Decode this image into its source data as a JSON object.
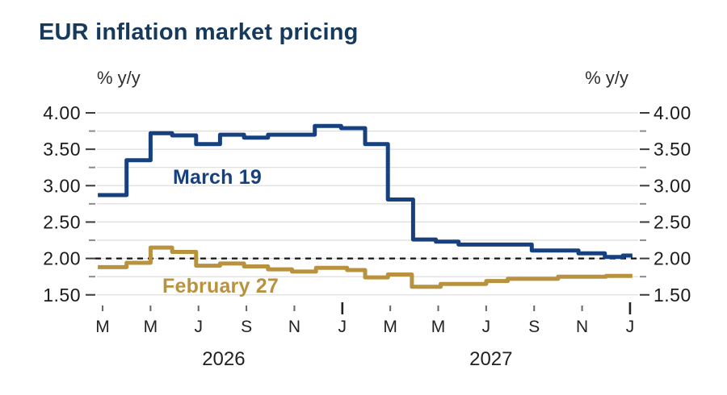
{
  "title": "EUR inflation market pricing",
  "axis_units": {
    "left": "% y/y",
    "right": "% y/y"
  },
  "chart_data": {
    "type": "line",
    "step": true,
    "title": "EUR inflation market pricing",
    "ylabel": "% y/y",
    "ylim": [
      1.5,
      4.0
    ],
    "ytick_labels": [
      "4.00",
      "3.50",
      "3.00",
      "2.50",
      "2.00",
      "1.50"
    ],
    "ytick_major_step": 0.5,
    "ytick_minor_step": 0.25,
    "grid": true,
    "legend_position": "inline-labels",
    "reference_line": {
      "value": 2.0,
      "style": "dashed",
      "color": "#141414"
    },
    "x_axis": {
      "range": "Mar 2026 - Jan 2028",
      "tick_labels": [
        "M",
        "M",
        "J",
        "S",
        "N",
        "J",
        "M",
        "M",
        "J",
        "S",
        "N",
        "J"
      ],
      "tick_month_offsets": [
        0,
        2,
        4,
        6,
        8,
        10,
        12,
        14,
        16,
        18,
        20,
        22
      ],
      "year_boundary_tick_indices": [
        5,
        11
      ],
      "year_labels": [
        {
          "label": "2026",
          "center_month": 5.05
        },
        {
          "label": "2027",
          "center_month": 16.2
        }
      ]
    },
    "series": [
      {
        "name": "March 19",
        "color": "#17407f",
        "unit": "% y/y",
        "points_month_value": [
          [
            -0.2,
            2.87
          ],
          [
            1,
            3.35
          ],
          [
            2,
            3.72
          ],
          [
            2.9,
            3.69
          ],
          [
            3.9,
            3.57
          ],
          [
            4.9,
            3.7
          ],
          [
            5.9,
            3.66
          ],
          [
            6.9,
            3.7
          ],
          [
            8.85,
            3.82
          ],
          [
            9.95,
            3.79
          ],
          [
            10.95,
            3.57
          ],
          [
            11.9,
            2.81
          ],
          [
            12.95,
            2.26
          ],
          [
            13.9,
            2.23
          ],
          [
            14.85,
            2.19
          ],
          [
            17.9,
            2.11
          ],
          [
            19.85,
            2.07
          ],
          [
            20.95,
            2.02
          ],
          [
            21.7,
            2.04
          ]
        ],
        "end_month": 22.1
      },
      {
        "name": "February 27",
        "color": "#b8923e",
        "unit": "% y/y",
        "points_month_value": [
          [
            -0.2,
            1.88
          ],
          [
            1,
            1.94
          ],
          [
            2,
            2.15
          ],
          [
            2.9,
            2.09
          ],
          [
            3.9,
            1.9
          ],
          [
            4.9,
            1.93
          ],
          [
            5.9,
            1.89
          ],
          [
            6.9,
            1.85
          ],
          [
            7.9,
            1.82
          ],
          [
            8.9,
            1.87
          ],
          [
            10.2,
            1.84
          ],
          [
            10.95,
            1.74
          ],
          [
            11.9,
            1.78
          ],
          [
            12.9,
            1.61
          ],
          [
            14.1,
            1.65
          ],
          [
            16,
            1.69
          ],
          [
            16.9,
            1.72
          ],
          [
            19,
            1.75
          ],
          [
            21,
            1.76
          ]
        ],
        "end_month": 22.1
      }
    ]
  }
}
